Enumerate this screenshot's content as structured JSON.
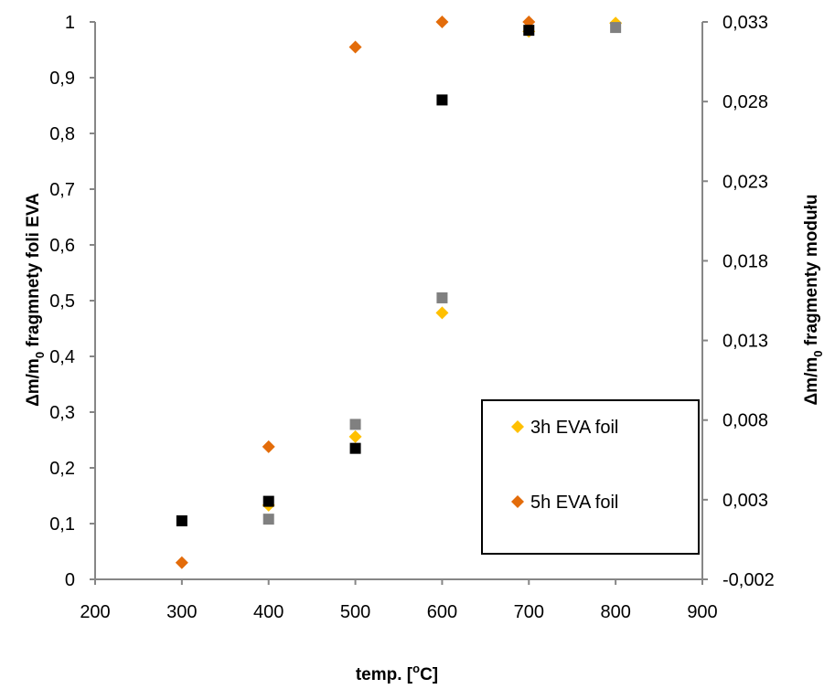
{
  "chart_data": {
    "type": "scatter",
    "title": "",
    "xlabel": "temp. [°C]",
    "xlabel_parts": {
      "main": "temp. [",
      "sup": "o",
      "end": "C]"
    },
    "ylabel_left": "Δm/m0 fragmnety foli EVA",
    "ylabel_left_parts": {
      "pre": "Δm/m",
      "sub": "0",
      "post": " fragmnety foli EVA"
    },
    "ylabel_right": "Δm/m0 fragmenty modułu",
    "ylabel_right_parts": {
      "pre": "Δm/m",
      "sub": "0",
      "post": " fragmenty modułu"
    },
    "xlim": [
      200,
      900
    ],
    "ylim_left": [
      0,
      1
    ],
    "ylim_right": [
      -0.002,
      0.033
    ],
    "x_ticks": [
      "200",
      "300",
      "400",
      "500",
      "600",
      "700",
      "800",
      "900"
    ],
    "y_left_ticks": [
      "0",
      "0,1",
      "0,2",
      "0,3",
      "0,4",
      "0,5",
      "0,6",
      "0,7",
      "0,8",
      "0,9",
      "1"
    ],
    "y_right_ticks": [
      "-0,002",
      "0,003",
      "0,008",
      "0,013",
      "0,018",
      "0,023",
      "0,028",
      "0,033"
    ],
    "grid": false,
    "legend_position": "bottom-right",
    "series": [
      {
        "name": "3h EVA foil",
        "marker": "diamond",
        "color": "#FFC000",
        "axis": "left",
        "x": [
          400,
          500,
          600,
          700,
          800
        ],
        "y": [
          0.133,
          0.256,
          0.478,
          0.983,
          0.998
        ]
      },
      {
        "name": "5h EVA foil",
        "marker": "diamond",
        "color": "#E36C0A",
        "axis": "left",
        "x": [
          300,
          400,
          500,
          600,
          700
        ],
        "y": [
          0.03,
          0.238,
          0.955,
          1.0,
          1.0
        ]
      },
      {
        "marker": "square",
        "color": "#808080",
        "axis": "left",
        "x": [
          400,
          500,
          600,
          800
        ],
        "y": [
          0.108,
          0.278,
          0.505,
          0.99
        ]
      },
      {
        "marker": "square",
        "color": "#000000",
        "axis": "left",
        "x": [
          300,
          400,
          500,
          600,
          700
        ],
        "y": [
          0.105,
          0.14,
          0.235,
          0.86,
          0.985
        ]
      }
    ]
  }
}
